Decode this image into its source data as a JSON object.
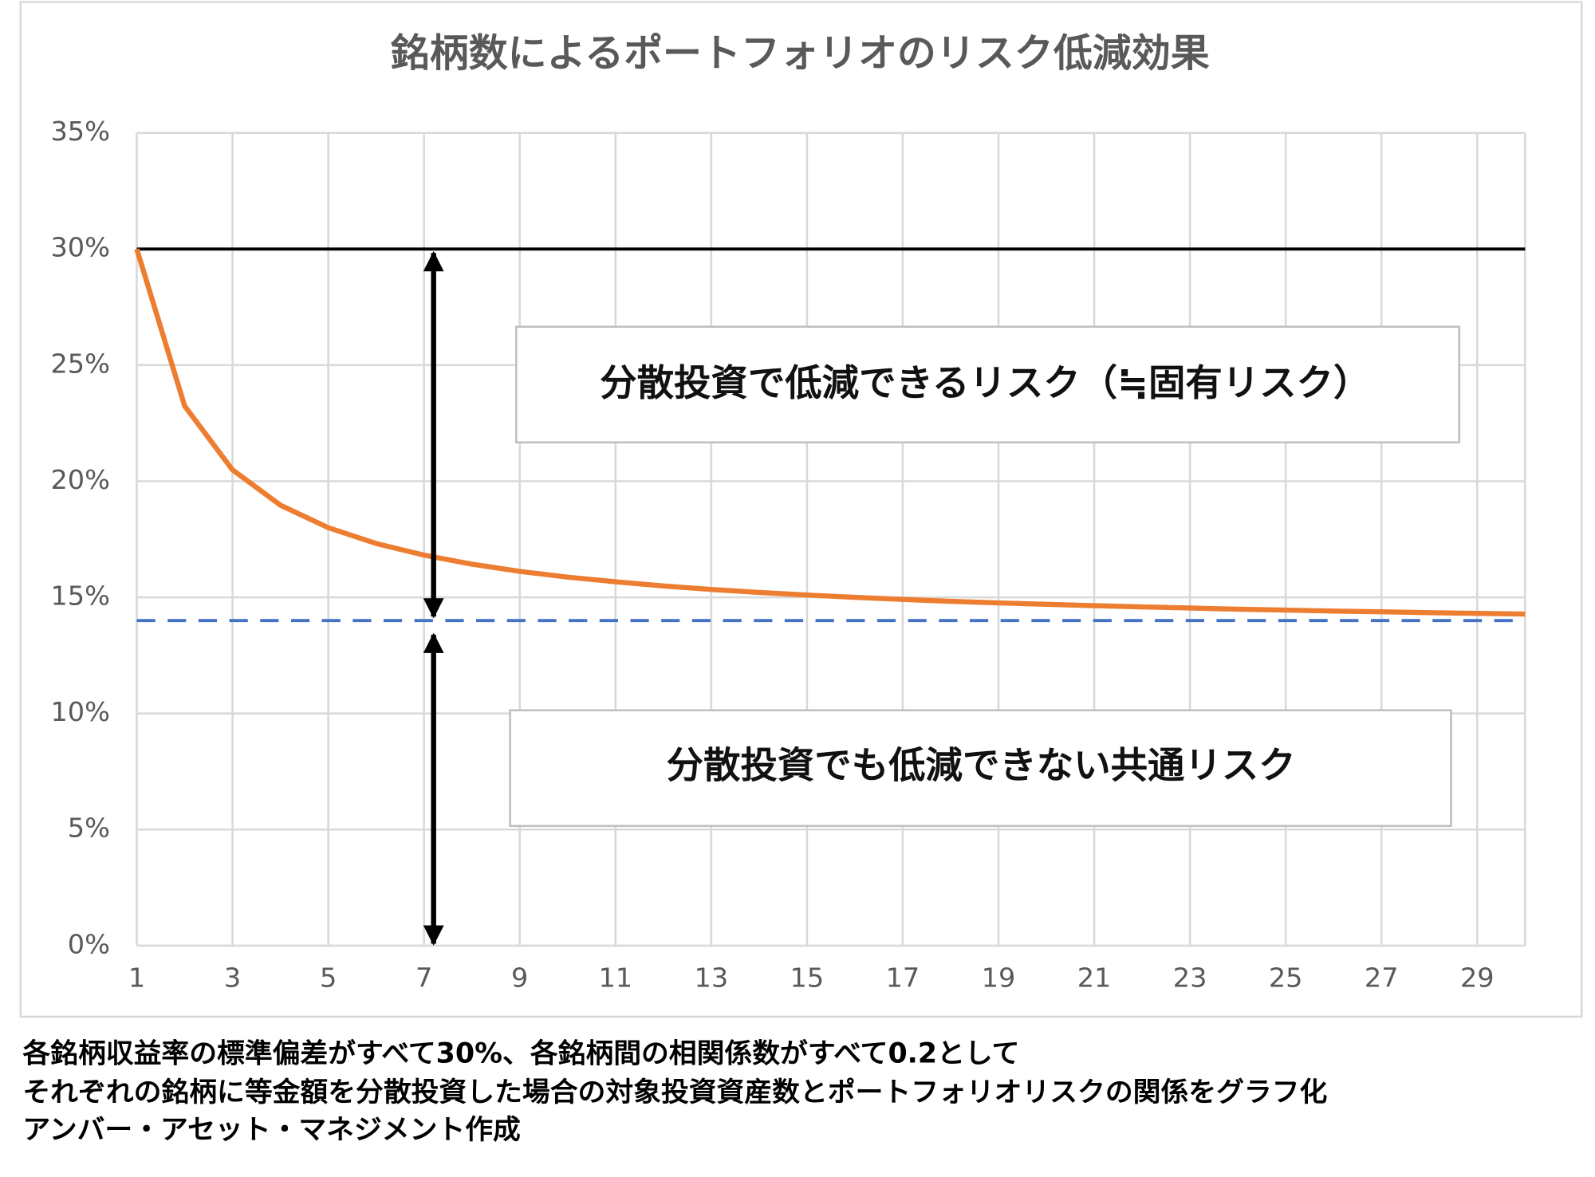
{
  "chart_data": {
    "type": "line",
    "title": "銘柄数によるポートフォリオのリスク低減効果",
    "x": [
      1,
      2,
      3,
      4,
      5,
      6,
      7,
      8,
      9,
      10,
      11,
      12,
      13,
      14,
      15,
      16,
      17,
      18,
      19,
      20,
      21,
      22,
      23,
      24,
      25,
      26,
      27,
      28,
      29,
      30
    ],
    "xlim": [
      1,
      30
    ],
    "xticks": [
      1,
      3,
      5,
      7,
      9,
      11,
      13,
      15,
      17,
      19,
      21,
      23,
      25,
      27,
      29
    ],
    "ylim": [
      0,
      35
    ],
    "yticks": [
      {
        "value": 0,
        "label": "0%"
      },
      {
        "value": 5,
        "label": "5%"
      },
      {
        "value": 10,
        "label": "10%"
      },
      {
        "value": 15,
        "label": "15%"
      },
      {
        "value": 20,
        "label": "20%"
      },
      {
        "value": 25,
        "label": "25%"
      },
      {
        "value": 30,
        "label": "30%"
      },
      {
        "value": 35,
        "label": "35%"
      }
    ],
    "grid": true,
    "series": [
      {
        "color": "#000000",
        "style": "solid",
        "values": [
          30,
          30,
          30,
          30,
          30,
          30,
          30,
          30,
          30,
          30,
          30,
          30,
          30,
          30,
          30,
          30,
          30,
          30,
          30,
          30,
          30,
          30,
          30,
          30,
          30,
          30,
          30,
          30,
          30,
          30
        ]
      },
      {
        "color": "#ed7d31",
        "style": "solid",
        "values": [
          30,
          23.24,
          20.49,
          18.97,
          18,
          17.32,
          16.82,
          16.43,
          16.12,
          15.87,
          15.67,
          15.49,
          15.34,
          15.21,
          15.1,
          15,
          14.91,
          14.83,
          14.76,
          14.7,
          14.64,
          14.59,
          14.54,
          14.49,
          14.45,
          14.41,
          14.38,
          14.34,
          14.31,
          14.28
        ]
      },
      {
        "color": "#4472c4",
        "style": "dashed",
        "values": [
          14,
          14,
          14,
          14,
          14,
          14,
          14,
          14,
          14,
          14,
          14,
          14,
          14,
          14,
          14,
          14,
          14,
          14,
          14,
          14,
          14,
          14,
          14,
          14,
          14,
          14,
          14,
          14,
          14,
          14
        ]
      }
    ],
    "annotations": [
      "分散投資で低減できるリスク（≒固有リスク）",
      "分散投資でも低減できない共通リスク"
    ]
  },
  "notes": [
    "各銘柄収益率の標準偏差がすべて30%、各銘柄間の相関係数がすべて0.2として",
    "それぞれの銘柄に等金額を分散投資した場合の対象投資資産数とポートフォリオリスクの関係をグラフ化",
    "アンバー・アセット・マネジメント作成"
  ]
}
